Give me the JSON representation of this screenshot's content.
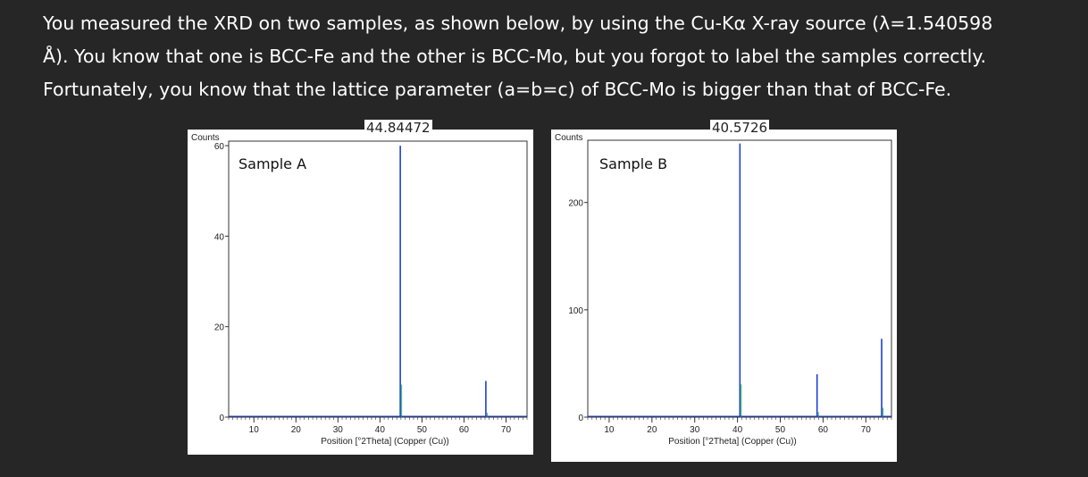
{
  "question": {
    "lines": [
      "You measured the XRD on two samples, as shown below, by using the Cu-Kα X-ray source (λ=1.540598",
      "Å). You know that one is BCC-Fe and the other is BCC-Mo, but you forgot to label the samples correctly.",
      "Fortunately, you know that the lattice parameter (a=b=c) of BCC-Mo is bigger than that of BCC-Fe."
    ]
  },
  "colors": {
    "background": "#262626",
    "text": "#ffffff",
    "trace": "#1f3fd6",
    "trace_secondary": "#2ec44a",
    "axis": "#333333"
  },
  "chart_data": [
    {
      "type": "line",
      "sample_label": "Sample A",
      "peak_annotation": "44.84472",
      "ylabel": "Counts",
      "xlabel": "Position [°2Theta] (Copper (Cu))",
      "xlim": [
        4,
        75
      ],
      "ylim": [
        0,
        61
      ],
      "x_ticks": [
        10,
        20,
        30,
        40,
        50,
        60,
        70
      ],
      "y_ticks": [
        0,
        20,
        40,
        60
      ],
      "grid": false,
      "peaks": [
        {
          "x": 44.84,
          "y": 60
        },
        {
          "x": 65.2,
          "y": 8
        }
      ]
    },
    {
      "type": "line",
      "sample_label": "Sample B",
      "peak_annotation": "40.5726",
      "ylabel": "Counts",
      "xlabel": "Position [°2Theta] (Copper (Cu))",
      "xlim": [
        5,
        76
      ],
      "ylim": [
        0,
        258
      ],
      "x_ticks": [
        10,
        20,
        30,
        40,
        50,
        60,
        70
      ],
      "y_ticks": [
        0,
        100,
        200
      ],
      "grid": false,
      "peaks": [
        {
          "x": 40.57,
          "y": 255
        },
        {
          "x": 58.6,
          "y": 40
        },
        {
          "x": 73.7,
          "y": 73
        }
      ]
    }
  ]
}
